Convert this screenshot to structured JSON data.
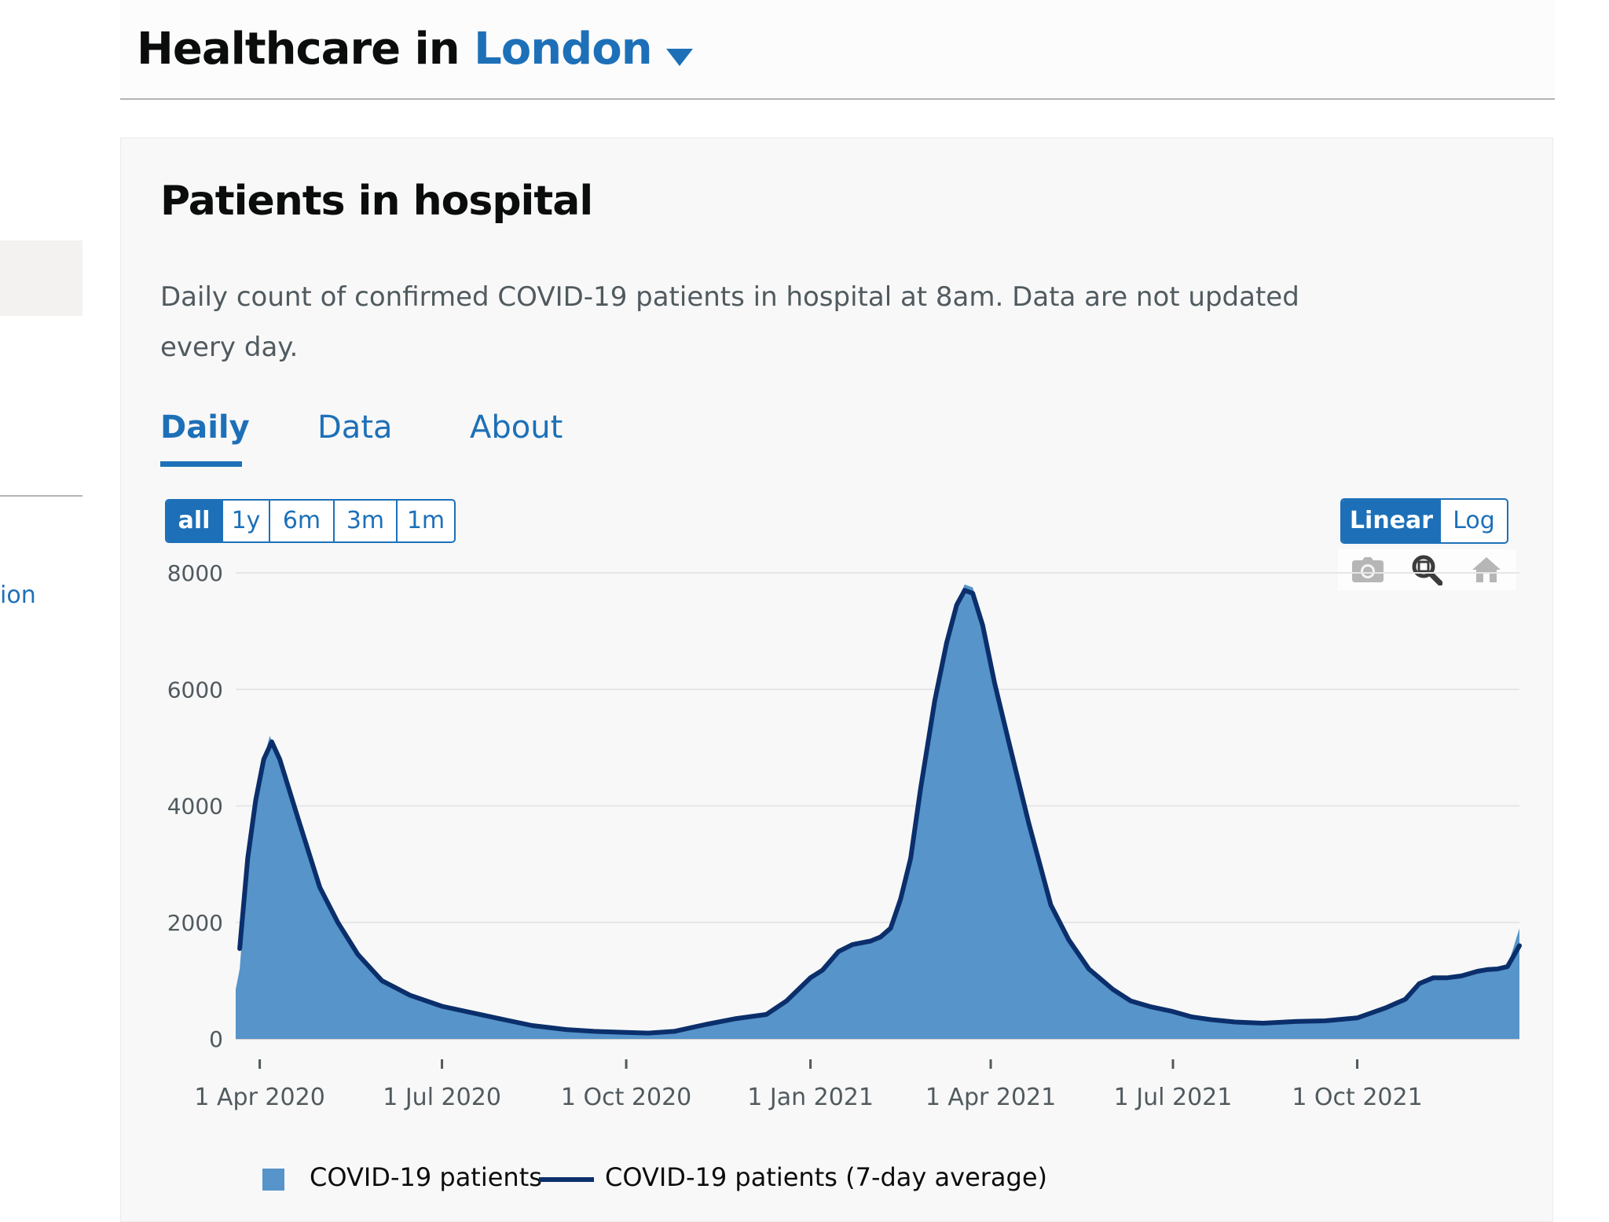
{
  "header": {
    "title_prefix": "Healthcare in",
    "location": "London"
  },
  "sidebar": {
    "link_fragment": "ion"
  },
  "card": {
    "title": "Patients in hospital",
    "description": "Daily count of confirmed COVID-19 patients in hospital at 8am. Data are not updated every day.",
    "tabs": [
      {
        "label": "Daily",
        "active": true
      },
      {
        "label": "Data",
        "active": false
      },
      {
        "label": "About",
        "active": false
      }
    ],
    "ranges": [
      {
        "label": "all",
        "active": true
      },
      {
        "label": "1y",
        "active": false
      },
      {
        "label": "6m",
        "active": false
      },
      {
        "label": "3m",
        "active": false
      },
      {
        "label": "1m",
        "active": false
      }
    ],
    "scales": [
      {
        "label": "Linear",
        "active": true
      },
      {
        "label": "Log",
        "active": false
      }
    ],
    "modebar_icons": [
      "camera-icon",
      "zoom-icon",
      "home-icon"
    ]
  },
  "colors": {
    "link_blue": "#1d70b8",
    "bar_fill": "#5694ca",
    "avg_line": "#0b2f6b",
    "card_bg": "#f8f8f8"
  },
  "chart_data": {
    "type": "area",
    "x_ticks": [
      "1 Apr 2020",
      "1 Jul 2020",
      "1 Oct 2020",
      "1 Jan 2021",
      "1 Apr 2021",
      "1 Jul 2021",
      "1 Oct 2021"
    ],
    "y_ticks": [
      0,
      2000,
      4000,
      6000,
      8000
    ],
    "ylim": [
      0,
      8000
    ],
    "xlim": [
      "2020-03-20",
      "2021-12-21"
    ],
    "grid": true,
    "legend_position": "bottom",
    "series": [
      {
        "name": "COVID-19 patients",
        "kind": "bars",
        "points": [
          [
            "2020-03-20",
            850
          ],
          [
            "2020-03-22",
            1200
          ],
          [
            "2020-03-26",
            3000
          ],
          [
            "2020-03-30",
            4000
          ],
          [
            "2020-04-03",
            4800
          ],
          [
            "2020-04-06",
            5200
          ],
          [
            "2020-04-10",
            4900
          ],
          [
            "2020-04-20",
            3800
          ],
          [
            "2020-05-01",
            2600
          ],
          [
            "2020-05-10",
            2000
          ],
          [
            "2020-05-20",
            1450
          ],
          [
            "2020-06-01",
            1000
          ],
          [
            "2020-06-15",
            750
          ],
          [
            "2020-07-01",
            560
          ],
          [
            "2020-07-20",
            420
          ],
          [
            "2020-08-01",
            330
          ],
          [
            "2020-08-15",
            230
          ],
          [
            "2020-09-01",
            160
          ],
          [
            "2020-09-15",
            130
          ],
          [
            "2020-10-01",
            110
          ],
          [
            "2020-10-12",
            100
          ],
          [
            "2020-10-25",
            130
          ],
          [
            "2020-11-10",
            250
          ],
          [
            "2020-11-25",
            350
          ],
          [
            "2020-12-10",
            420
          ],
          [
            "2020-12-20",
            650
          ],
          [
            "2021-01-01",
            1050
          ],
          [
            "2021-01-07",
            1180
          ],
          [
            "2021-01-15",
            1500
          ],
          [
            "2021-01-22",
            1620
          ],
          [
            "2021-01-31",
            1680
          ],
          [
            "2021-02-05",
            1750
          ],
          [
            "2021-02-10",
            1900
          ],
          [
            "2021-02-15",
            2400
          ],
          [
            "2021-02-20",
            3100
          ],
          [
            "2021-02-25",
            4300
          ],
          [
            "2021-03-04",
            5800
          ],
          [
            "2021-03-10",
            6900
          ],
          [
            "2021-03-15",
            7500
          ],
          [
            "2021-03-19",
            7800
          ],
          [
            "2021-03-23",
            7750
          ],
          [
            "2021-03-28",
            7200
          ],
          [
            "2021-04-03",
            6200
          ],
          [
            "2021-04-10",
            5200
          ],
          [
            "2021-04-20",
            3700
          ],
          [
            "2021-05-01",
            2300
          ],
          [
            "2021-05-10",
            1700
          ],
          [
            "2021-05-20",
            1200
          ],
          [
            "2021-06-01",
            850
          ],
          [
            "2021-06-10",
            650
          ],
          [
            "2021-06-20",
            550
          ],
          [
            "2021-07-01",
            470
          ],
          [
            "2021-07-10",
            380
          ],
          [
            "2021-07-20",
            330
          ],
          [
            "2021-08-01",
            290
          ],
          [
            "2021-08-15",
            270
          ],
          [
            "2021-09-01",
            300
          ],
          [
            "2021-09-15",
            310
          ],
          [
            "2021-10-01",
            360
          ],
          [
            "2021-10-15",
            530
          ],
          [
            "2021-10-25",
            680
          ],
          [
            "2021-11-01",
            950
          ],
          [
            "2021-11-08",
            1050
          ],
          [
            "2021-11-15",
            1050
          ],
          [
            "2021-11-22",
            1080
          ],
          [
            "2021-11-30",
            1160
          ],
          [
            "2021-12-05",
            1190
          ],
          [
            "2021-12-10",
            1200
          ],
          [
            "2021-12-15",
            1240
          ],
          [
            "2021-12-21",
            1900
          ]
        ]
      },
      {
        "name": "COVID-19 patients (7-day average)",
        "kind": "line",
        "points": [
          [
            "2020-03-22",
            1550
          ],
          [
            "2020-03-26",
            3100
          ],
          [
            "2020-03-30",
            4100
          ],
          [
            "2020-04-03",
            4800
          ],
          [
            "2020-04-07",
            5100
          ],
          [
            "2020-04-11",
            4800
          ],
          [
            "2020-04-20",
            3800
          ],
          [
            "2020-05-01",
            2600
          ],
          [
            "2020-05-10",
            2000
          ],
          [
            "2020-05-20",
            1450
          ],
          [
            "2020-06-01",
            1000
          ],
          [
            "2020-06-15",
            750
          ],
          [
            "2020-07-01",
            560
          ],
          [
            "2020-07-20",
            420
          ],
          [
            "2020-08-01",
            330
          ],
          [
            "2020-08-15",
            230
          ],
          [
            "2020-09-01",
            160
          ],
          [
            "2020-09-15",
            130
          ],
          [
            "2020-10-01",
            110
          ],
          [
            "2020-10-12",
            100
          ],
          [
            "2020-10-25",
            130
          ],
          [
            "2020-11-10",
            250
          ],
          [
            "2020-11-25",
            350
          ],
          [
            "2020-12-10",
            420
          ],
          [
            "2020-12-20",
            650
          ],
          [
            "2021-01-01",
            1050
          ],
          [
            "2021-01-07",
            1180
          ],
          [
            "2021-01-15",
            1500
          ],
          [
            "2021-01-22",
            1620
          ],
          [
            "2021-01-31",
            1680
          ],
          [
            "2021-02-05",
            1750
          ],
          [
            "2021-02-10",
            1900
          ],
          [
            "2021-02-15",
            2400
          ],
          [
            "2021-02-20",
            3100
          ],
          [
            "2021-02-25",
            4300
          ],
          [
            "2021-03-04",
            5800
          ],
          [
            "2021-03-10",
            6800
          ],
          [
            "2021-03-15",
            7450
          ],
          [
            "2021-03-19",
            7700
          ],
          [
            "2021-03-23",
            7650
          ],
          [
            "2021-03-28",
            7100
          ],
          [
            "2021-04-03",
            6100
          ],
          [
            "2021-04-10",
            5100
          ],
          [
            "2021-04-20",
            3700
          ],
          [
            "2021-05-01",
            2300
          ],
          [
            "2021-05-10",
            1700
          ],
          [
            "2021-05-20",
            1200
          ],
          [
            "2021-06-01",
            850
          ],
          [
            "2021-06-10",
            650
          ],
          [
            "2021-06-20",
            550
          ],
          [
            "2021-07-01",
            470
          ],
          [
            "2021-07-10",
            380
          ],
          [
            "2021-07-20",
            330
          ],
          [
            "2021-08-01",
            290
          ],
          [
            "2021-08-15",
            270
          ],
          [
            "2021-09-01",
            300
          ],
          [
            "2021-09-15",
            310
          ],
          [
            "2021-10-01",
            360
          ],
          [
            "2021-10-15",
            530
          ],
          [
            "2021-10-25",
            680
          ],
          [
            "2021-11-01",
            950
          ],
          [
            "2021-11-08",
            1050
          ],
          [
            "2021-11-15",
            1050
          ],
          [
            "2021-11-22",
            1080
          ],
          [
            "2021-11-30",
            1160
          ],
          [
            "2021-12-05",
            1190
          ],
          [
            "2021-12-10",
            1200
          ],
          [
            "2021-12-15",
            1240
          ],
          [
            "2021-12-21",
            1600
          ]
        ]
      }
    ]
  }
}
